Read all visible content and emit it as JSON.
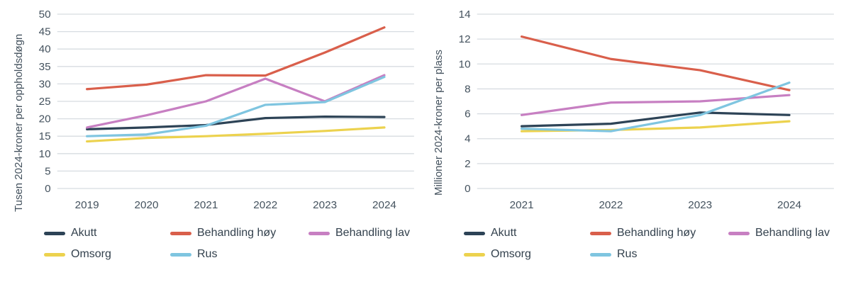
{
  "colors": {
    "Akutt": "#2d4356",
    "Behandling høy": "#d95f4b",
    "Behandling lav": "#c77fc2",
    "Omsorg": "#ecd24e",
    "Rus": "#7fc5e0",
    "grid": "#d7dce1",
    "text": "#44525e"
  },
  "chart_data": [
    {
      "type": "line",
      "title": "",
      "ylabel": "Tusen 2024-kroner per oppholdsdøgn",
      "xlabel": "",
      "x": [
        "2019",
        "2020",
        "2021",
        "2022",
        "2023",
        "2024"
      ],
      "ylim": [
        0,
        50
      ],
      "ytick_step": 5,
      "grid": true,
      "legend_position": "bottom",
      "series": [
        {
          "name": "Akutt",
          "values": [
            17.0,
            17.5,
            18.2,
            20.2,
            20.6,
            20.5
          ]
        },
        {
          "name": "Behandling høy",
          "values": [
            28.5,
            29.8,
            32.5,
            32.4,
            39.0,
            46.2
          ]
        },
        {
          "name": "Behandling lav",
          "values": [
            17.5,
            21.0,
            25.0,
            31.5,
            25.0,
            32.5
          ]
        },
        {
          "name": "Omsorg",
          "values": [
            13.5,
            14.5,
            15.0,
            15.7,
            16.5,
            17.5
          ]
        },
        {
          "name": "Rus",
          "values": [
            15.0,
            15.5,
            18.0,
            24.0,
            24.8,
            32.0
          ]
        }
      ]
    },
    {
      "type": "line",
      "title": "",
      "ylabel": "Millioner 2024-kroner per plass",
      "xlabel": "",
      "x": [
        "2021",
        "2022",
        "2023",
        "2024"
      ],
      "ylim": [
        0,
        14
      ],
      "ytick_step": 2,
      "grid": true,
      "legend_position": "bottom",
      "series": [
        {
          "name": "Akutt",
          "values": [
            5.0,
            5.2,
            6.1,
            5.9
          ]
        },
        {
          "name": "Behandling høy",
          "values": [
            12.2,
            10.4,
            9.5,
            7.9
          ]
        },
        {
          "name": "Behandling lav",
          "values": [
            5.9,
            6.9,
            7.0,
            7.5
          ]
        },
        {
          "name": "Omsorg",
          "values": [
            4.6,
            4.7,
            4.9,
            5.4
          ]
        },
        {
          "name": "Rus",
          "values": [
            4.8,
            4.6,
            5.9,
            8.5
          ]
        }
      ]
    }
  ]
}
